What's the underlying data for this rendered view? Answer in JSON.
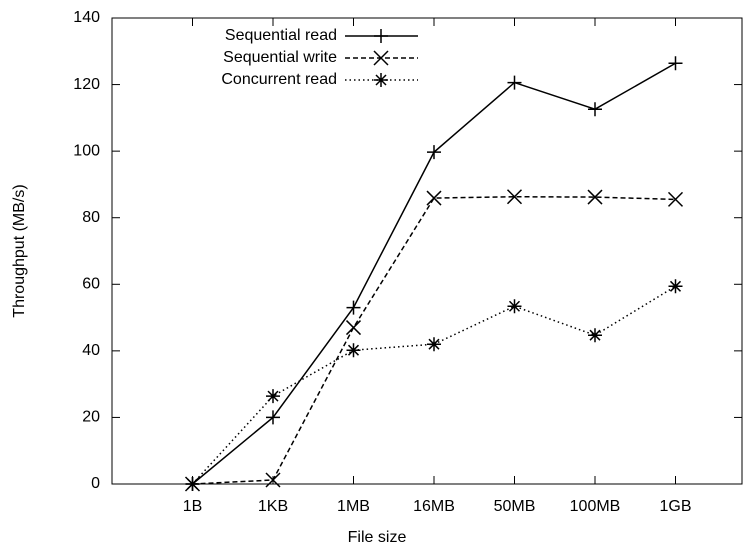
{
  "chart_data": {
    "type": "line",
    "x_label": "File size",
    "y_label": "Throughput (MB/s)",
    "categories": [
      "1B",
      "1KB",
      "1MB",
      "16MB",
      "50MB",
      "100MB",
      "1GB"
    ],
    "ylim": [
      0,
      140
    ],
    "yticks": [
      0,
      20,
      40,
      60,
      80,
      100,
      120,
      140
    ],
    "legend": "top-left",
    "series": [
      {
        "name": "Sequential read",
        "color": "#000000",
        "marker": "plus",
        "values": [
          0,
          20,
          53,
          99.7,
          120.6,
          112.6,
          126.4
        ]
      },
      {
        "name": "Sequential write",
        "color": "#000000",
        "marker": "cross",
        "values": [
          0,
          1.2,
          47,
          85.9,
          86.3,
          86.2,
          85.5
        ]
      },
      {
        "name": "Concurrent read",
        "color": "#000000",
        "marker": "star",
        "values": [
          0,
          26.4,
          40.2,
          42,
          53.4,
          44.7,
          59.4
        ]
      }
    ]
  }
}
